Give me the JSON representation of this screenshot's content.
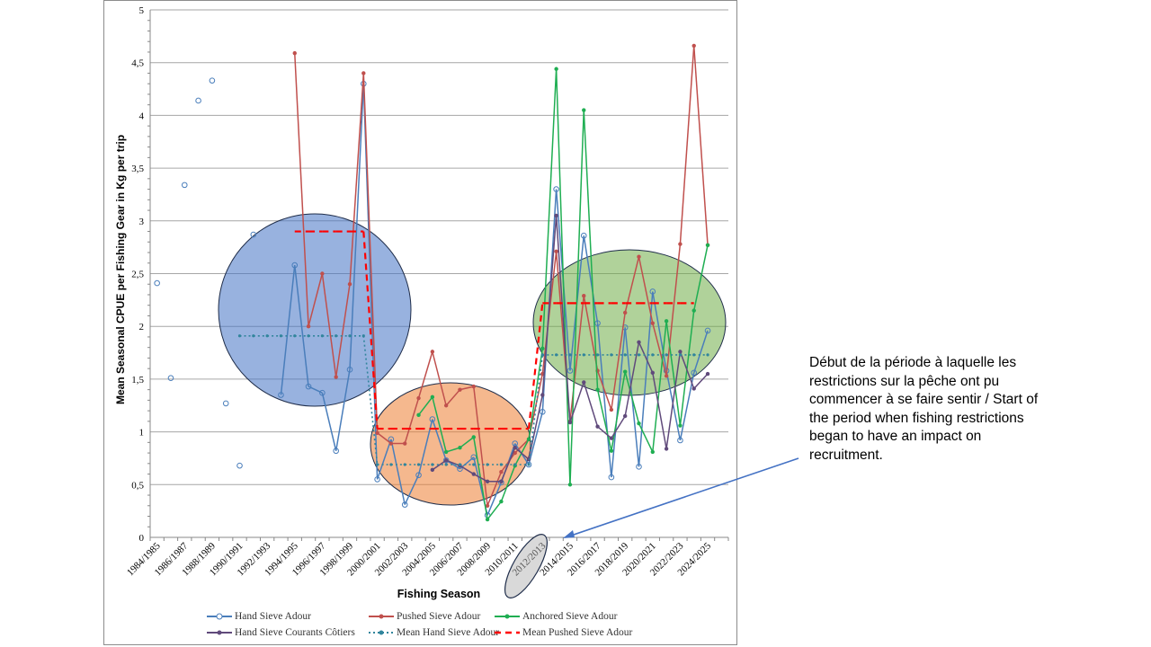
{
  "chart_data": {
    "type": "line",
    "title": "",
    "xlabel": "Fishing Season",
    "ylabel": "Mean  Seasonal CPUE  per Fishing Gear in Kg per trip",
    "ylim": [
      0,
      5
    ],
    "yticks": [
      "0",
      "0,5",
      "1",
      "1,5",
      "2",
      "2,5",
      "3",
      "3,5",
      "4",
      "4,5",
      "5"
    ],
    "grid": true,
    "legend_position": "bottom",
    "categories": [
      "1984/1985",
      "1985/1986",
      "1986/1987",
      "1987/1988",
      "1988/1989",
      "1989/1990",
      "1990/1991",
      "1991/1992",
      "1992/1993",
      "1993/1994",
      "1994/1995",
      "1995/1996",
      "1996/1997",
      "1997/1998",
      "1998/1999",
      "1999/2000",
      "2000/2001",
      "2001/2002",
      "2002/2003",
      "2003/2004",
      "2004/2005",
      "2005/2006",
      "2006/2007",
      "2007/2008",
      "2008/2009",
      "2009/2010",
      "2010/2011",
      "2011/2012",
      "2012/2013",
      "2013/2014",
      "2014/2015",
      "2015/2016",
      "2016/2017",
      "2017/2018",
      "2018/2019",
      "2019/2020",
      "2020/2021",
      "2021/2022",
      "2022/2023",
      "2023/2024",
      "2024/2025",
      "2025/2026"
    ],
    "tick_labels": [
      "1984/1985",
      "1986/1987",
      "1988/1989",
      "1990/1991",
      "1992/1993",
      "1994/1995",
      "1996/1997",
      "1998/1999",
      "2000/2001",
      "2002/2003",
      "2004/2005",
      "2006/2007",
      "2008/2009",
      "2010/2011",
      "2012/2013",
      "2014/2015",
      "2016/2017",
      "2018/2019",
      "2020/2021",
      "2022/2023",
      "2024/2025"
    ],
    "series": [
      {
        "name": "Hand Sieve Adour",
        "color": "#4a7ebb",
        "marker": "circle",
        "style": "solid",
        "connected_from_index": 9,
        "values": [
          2.41,
          1.51,
          3.34,
          4.14,
          4.33,
          1.27,
          0.68,
          2.87,
          null,
          1.35,
          2.58,
          1.43,
          1.37,
          0.82,
          1.59,
          4.3,
          0.55,
          0.93,
          0.31,
          0.59,
          1.12,
          0.73,
          0.65,
          0.76,
          0.21,
          0.52,
          0.89,
          0.69,
          1.19,
          3.3,
          1.58,
          2.86,
          2.03,
          0.57,
          1.99,
          0.67,
          2.33,
          1.58,
          0.92,
          1.56,
          1.96,
          null
        ]
      },
      {
        "name": "Pushed Sieve Adour",
        "color": "#c0504d",
        "marker": "dot",
        "style": "solid",
        "values": [
          null,
          null,
          null,
          null,
          null,
          null,
          null,
          null,
          null,
          null,
          4.59,
          2.0,
          2.5,
          1.52,
          2.4,
          4.4,
          0.99,
          0.89,
          0.89,
          1.32,
          1.76,
          1.25,
          1.4,
          1.43,
          0.3,
          0.62,
          0.8,
          0.93,
          1.55,
          2.71,
          1.1,
          2.29,
          1.58,
          1.21,
          2.13,
          2.66,
          2.03,
          1.53,
          2.78,
          4.66,
          2.77,
          null
        ]
      },
      {
        "name": "Anchored Sieve Adour",
        "color": "#1fae52",
        "marker": "dot",
        "style": "solid",
        "values": [
          null,
          null,
          null,
          null,
          null,
          null,
          null,
          null,
          null,
          null,
          null,
          null,
          null,
          null,
          null,
          null,
          null,
          null,
          null,
          1.16,
          1.33,
          0.81,
          0.85,
          0.95,
          0.17,
          0.34,
          0.68,
          0.93,
          1.79,
          4.44,
          0.5,
          4.05,
          1.4,
          0.82,
          1.57,
          1.08,
          0.81,
          2.05,
          1.06,
          2.15,
          2.77,
          null
        ]
      },
      {
        "name": "Hand Sieve Courants Côtiers",
        "color": "#604a7b",
        "marker": "dot",
        "style": "solid",
        "values": [
          null,
          null,
          null,
          null,
          null,
          null,
          null,
          null,
          null,
          null,
          null,
          null,
          null,
          null,
          null,
          null,
          null,
          null,
          null,
          null,
          0.64,
          0.73,
          0.68,
          0.6,
          0.53,
          0.53,
          0.85,
          0.74,
          1.35,
          3.05,
          1.09,
          1.47,
          1.05,
          0.94,
          1.15,
          1.85,
          1.56,
          0.84,
          1.76,
          1.41,
          1.55,
          null
        ]
      },
      {
        "name": "Mean Hand Sieve Adour",
        "color": "#31859c",
        "marker": "dot",
        "style": "dotted",
        "values": [
          null,
          null,
          null,
          null,
          null,
          null,
          1.91,
          1.91,
          1.91,
          1.91,
          1.91,
          1.91,
          1.91,
          1.91,
          1.91,
          1.91,
          0.69,
          0.69,
          0.69,
          0.69,
          0.69,
          0.69,
          0.69,
          0.69,
          0.69,
          0.69,
          0.69,
          0.69,
          1.73,
          1.73,
          1.73,
          1.73,
          1.73,
          1.73,
          1.73,
          1.73,
          1.73,
          1.73,
          1.73,
          1.73,
          1.73,
          null
        ]
      },
      {
        "name": "Mean Pushed Sieve Adour",
        "color": "#ff0000",
        "marker": "none",
        "style": "dashed",
        "values": [
          null,
          null,
          null,
          null,
          null,
          null,
          null,
          null,
          null,
          null,
          2.9,
          2.9,
          2.9,
          2.9,
          2.9,
          2.9,
          1.03,
          1.03,
          1.03,
          1.03,
          1.03,
          1.03,
          1.03,
          1.03,
          1.03,
          1.03,
          1.03,
          1.03,
          2.22,
          2.22,
          2.22,
          2.22,
          2.22,
          2.22,
          2.22,
          2.22,
          2.22,
          2.22,
          2.22,
          2.22,
          null,
          null
        ]
      }
    ],
    "highlight_periods": [
      {
        "from": "1993/1994",
        "to": "1999/2000",
        "color": "#4472c4"
      },
      {
        "from": "2000/2001",
        "to": "2011/2012",
        "color": "#ed7d31"
      },
      {
        "from": "2012/2013",
        "to": "2024/2025",
        "color": "#70ad47"
      }
    ],
    "highlighted_tick": "2012/2013"
  },
  "annotation": {
    "text": "Début de la période à laquelle les restrictions sur la pêche ont pu commencer à se faire sentir / Start of the period when fishing restrictions began to have an impact on recruitment."
  }
}
